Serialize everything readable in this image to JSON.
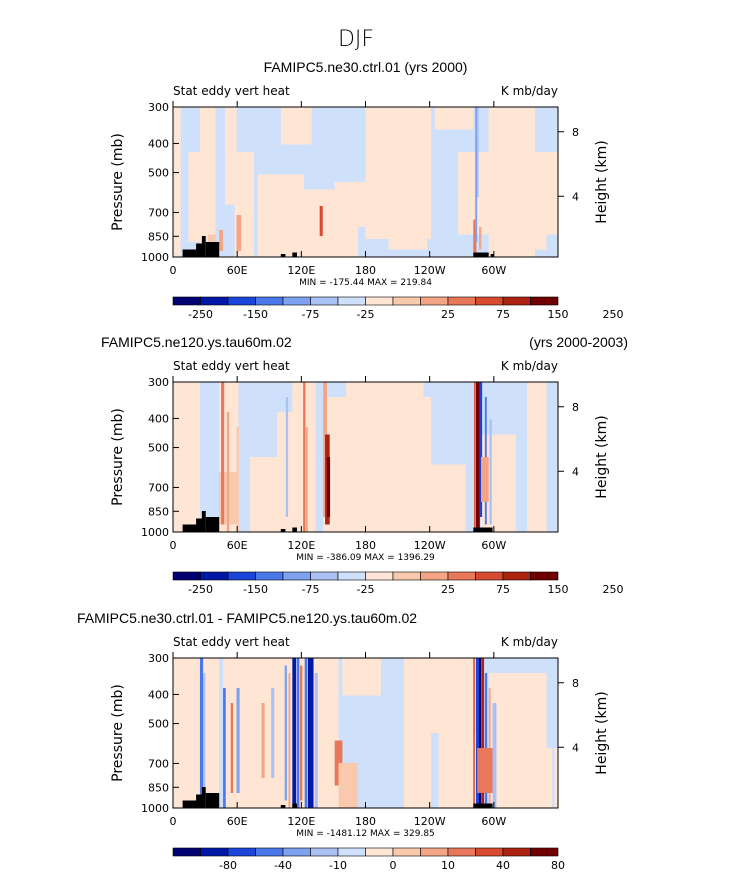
{
  "figure": {
    "suptitle": "DJF"
  },
  "chart_data": [
    {
      "type": "heatmap",
      "title": "FAMIPC5.ne30.ctrl.01 (yrs 2000)",
      "left_title": "",
      "right_title": "",
      "left_string": "Stat eddy vert heat",
      "right_string": "K mb/day",
      "xlabel": "",
      "ylabel": "Pressure (mb)",
      "y2label": "Height (km)",
      "xticks": [
        "0",
        "60E",
        "120E",
        "180",
        "120W",
        "60W"
      ],
      "yticks": [
        "300",
        "400",
        "500",
        "700",
        "850",
        "1000"
      ],
      "y2ticks": [
        "8",
        "4"
      ],
      "minmax": "MIN = -175.44   MAX = 219.84",
      "colorbar_labels": [
        "-250",
        "-150",
        "-75",
        "-25",
        "25",
        "75",
        "150",
        "250"
      ],
      "colors": [
        "#000070",
        "#0018a8",
        "#1a45d8",
        "#4a78ea",
        "#7ea1f0",
        "#a9c1f3",
        "#cfe0fb",
        "#ffe6d4",
        "#f9c9ae",
        "#f3a585",
        "#e9775a",
        "#d84a2f",
        "#ab2210",
        "#700000"
      ]
    },
    {
      "type": "heatmap",
      "title": "",
      "left_title": "FAMIPC5.ne120.ys.tau60m.02",
      "right_title": "(yrs 2000-2003)",
      "left_string": "Stat eddy vert heat",
      "right_string": "K mb/day",
      "xlabel": "",
      "ylabel": "Pressure (mb)",
      "y2label": "Height (km)",
      "xticks": [
        "0",
        "60E",
        "120E",
        "180",
        "120W",
        "60W"
      ],
      "yticks": [
        "300",
        "400",
        "500",
        "700",
        "850",
        "1000"
      ],
      "y2ticks": [
        "8",
        "4"
      ],
      "minmax": "MIN = -386.09   MAX = 1396.29",
      "colorbar_labels": [
        "-250",
        "-150",
        "-75",
        "-25",
        "25",
        "75",
        "150",
        "250"
      ],
      "colors": [
        "#000070",
        "#0018a8",
        "#1a45d8",
        "#4a78ea",
        "#7ea1f0",
        "#a9c1f3",
        "#cfe0fb",
        "#ffe6d4",
        "#f9c9ae",
        "#f3a585",
        "#e9775a",
        "#d84a2f",
        "#ab2210",
        "#700000"
      ]
    },
    {
      "type": "heatmap",
      "title": "",
      "left_title": "FAMIPC5.ne30.ctrl.01 - FAMIPC5.ne120.ys.tau60m.02",
      "right_title": "",
      "left_string": "Stat eddy vert heat",
      "right_string": "K mb/day",
      "xlabel": "",
      "ylabel": "Pressure (mb)",
      "y2label": "Height (km)",
      "xticks": [
        "0",
        "60E",
        "120E",
        "180",
        "120W",
        "60W"
      ],
      "yticks": [
        "300",
        "400",
        "500",
        "700",
        "850",
        "1000"
      ],
      "y2ticks": [
        "8",
        "4"
      ],
      "minmax": "MIN = -1481.12   MAX = 329.85",
      "colorbar_labels": [
        "-80",
        "-40",
        "-10",
        "0",
        "10",
        "40",
        "80"
      ],
      "colors": [
        "#000070",
        "#0018a8",
        "#1a45d8",
        "#4a78ea",
        "#7ea1f0",
        "#a9c1f3",
        "#cfe0fb",
        "#ffe6d4",
        "#f9c9ae",
        "#f3a585",
        "#e9775a",
        "#d84a2f",
        "#ab2210",
        "#700000"
      ]
    }
  ]
}
